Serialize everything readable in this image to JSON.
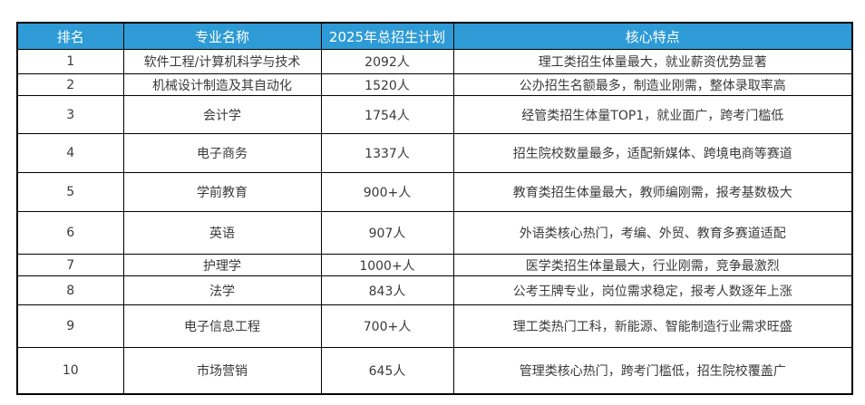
{
  "table": {
    "columns": [
      "排名",
      "专业名称",
      "2025年总招生计划",
      "核心特点"
    ],
    "header_bg": "#2E9BD6",
    "header_text_color": "#FFFFFF",
    "border_color": "#000000",
    "body_text_color": "#3A3A3A",
    "rows": [
      {
        "rank": "1",
        "major": "软件工程/计算机科学与技术",
        "plan": "2092人",
        "feature": "理工类招生体量最大，就业薪资优势显著"
      },
      {
        "rank": "2",
        "major": "机械设计制造及其自动化",
        "plan": "1520人",
        "feature": "公办招生名额最多，制造业刚需，整体录取率高"
      },
      {
        "rank": "3",
        "major": "会计学",
        "plan": "1754人",
        "feature": "经管类招生体量TOP1，就业面广，跨考门槛低"
      },
      {
        "rank": "4",
        "major": "电子商务",
        "plan": "1337人",
        "feature": "招生院校数量最多，适配新媒体、跨境电商等赛道"
      },
      {
        "rank": "5",
        "major": "学前教育",
        "plan": "900+人",
        "feature": "教育类招生体量最大，教师编刚需，报考基数极大"
      },
      {
        "rank": "6",
        "major": "英语",
        "plan": "907人",
        "feature": "外语类核心热门，考编、外贸、教育多赛道适配"
      },
      {
        "rank": "7",
        "major": "护理学",
        "plan": "1000+人",
        "feature": "医学类招生体量最大，行业刚需，竞争最激烈"
      },
      {
        "rank": "8",
        "major": "法学",
        "plan": "843人",
        "feature": "公考王牌专业，岗位需求稳定，报考人数逐年上涨"
      },
      {
        "rank": "9",
        "major": "电子信息工程",
        "plan": "700+人",
        "feature": "理工类热门工科，新能源、智能制造行业需求旺盛"
      },
      {
        "rank": "10",
        "major": "市场营销",
        "plan": "645人",
        "feature": "管理类核心热门，跨考门槛低，招生院校覆盖广"
      }
    ]
  },
  "chart_data": {
    "type": "table",
    "title": "",
    "columns": [
      "排名",
      "专业名称",
      "2025年总招生计划",
      "核心特点"
    ],
    "rows": [
      [
        "1",
        "软件工程/计算机科学与技术",
        "2092人",
        "理工类招生体量最大，就业薪资优势显著"
      ],
      [
        "2",
        "机械设计制造及其自动化",
        "1520人",
        "公办招生名额最多，制造业刚需，整体录取率高"
      ],
      [
        "3",
        "会计学",
        "1754人",
        "经管类招生体量TOP1，就业面广，跨考门槛低"
      ],
      [
        "4",
        "电子商务",
        "1337人",
        "招生院校数量最多，适配新媒体、跨境电商等赛道"
      ],
      [
        "5",
        "学前教育",
        "900+人",
        "教育类招生体量最大，教师编刚需，报考基数极大"
      ],
      [
        "6",
        "英语",
        "907人",
        "外语类核心热门，考编、外贸、教育多赛道适配"
      ],
      [
        "7",
        "护理学",
        "1000+人",
        "医学类招生体量最大，行业刚需，竞争最激烈"
      ],
      [
        "8",
        "法学",
        "843人",
        "公考王牌专业，岗位需求稳定，报考人数逐年上涨"
      ],
      [
        "9",
        "电子信息工程",
        "700+人",
        "理工类热门工科，新能源、智能制造行业需求旺盛"
      ],
      [
        "10",
        "市场营销",
        "645人",
        "管理类核心热门，跨考门槛低，招生院校覆盖广"
      ]
    ]
  }
}
